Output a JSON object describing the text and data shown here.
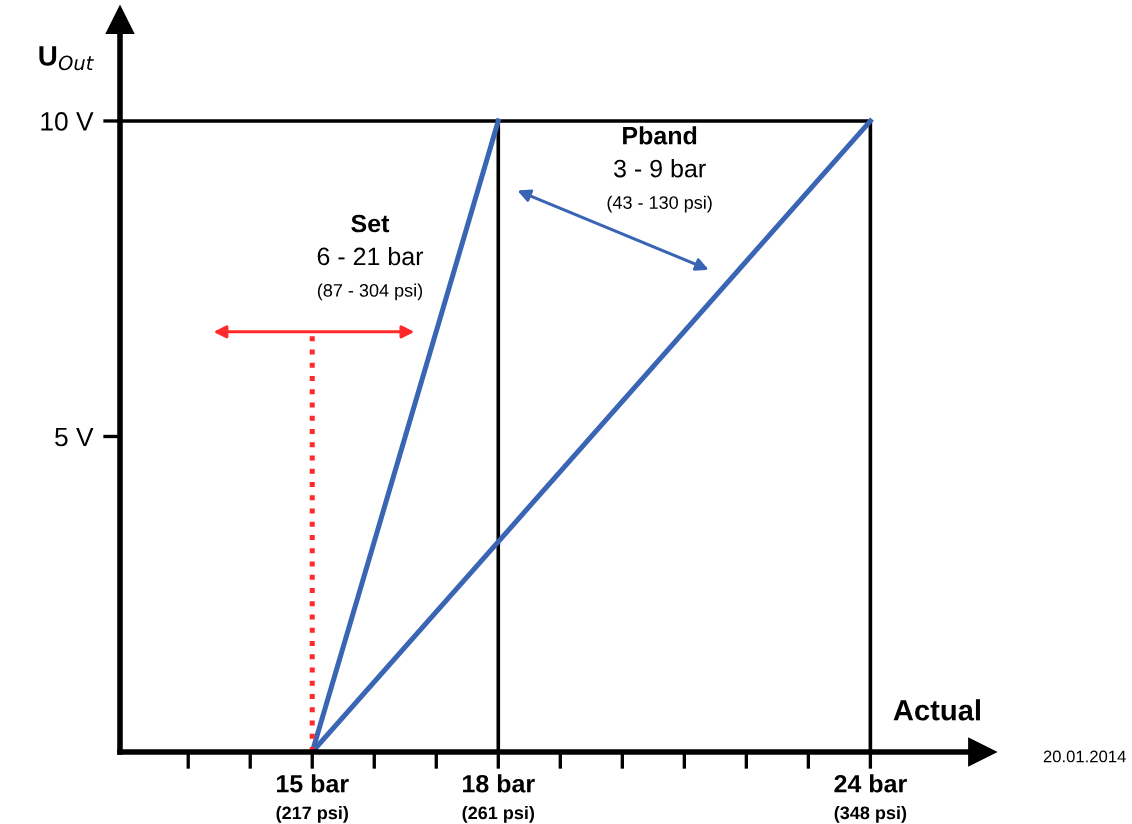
{
  "chart_data": {
    "type": "line",
    "xlabel": "Actual",
    "ylabel": "U$_{Out}$",
    "xlim": [
      11.9,
      25.8
    ],
    "ylim": [
      0,
      11.6
    ],
    "xticks": [
      {
        "value": 13,
        "label": null
      },
      {
        "value": 14,
        "label": null
      },
      {
        "value": 15,
        "label": "15 bar"
      },
      {
        "value": 16,
        "label": null
      },
      {
        "value": 17,
        "label": null
      },
      {
        "value": 18,
        "label": "18 bar"
      },
      {
        "value": 19,
        "label": null
      },
      {
        "value": 20,
        "label": null
      },
      {
        "value": 21,
        "label": null
      },
      {
        "value": 22,
        "label": null
      },
      {
        "value": 23,
        "label": null
      },
      {
        "value": 24,
        "label": "24 bar"
      }
    ],
    "yticks": [
      {
        "value": 5,
        "label": "5 V"
      },
      {
        "value": 10,
        "label": "10 V"
      }
    ],
    "series": [
      {
        "color": "#000000",
        "x": [
          11.9,
          18,
          18,
          18,
          24,
          24
        ],
        "values": [
          10,
          10,
          0,
          10,
          10,
          0
        ]
      },
      {
        "color": "#3a64b4",
        "x": [
          15,
          18
        ],
        "values": [
          0,
          10
        ]
      },
      {
        "color": "#3a64b4",
        "x": [
          15,
          24
        ],
        "values": [
          0,
          10
        ]
      },
      {
        "color": "#ff2a2a",
        "line_style": "dotted",
        "x": [
          15,
          15
        ],
        "values": [
          0,
          6.6
        ]
      }
    ],
    "annotations": [
      "Set\n6 - 21 bar\n(87 - 304 psi)",
      "Pband\n3 - 9 bar\n(43 - 130 psi)",
      {
        "text": "(217 psi)",
        "x": 15,
        "y": 0
      },
      {
        "text": "(261 psi)",
        "x": 18,
        "y": 0
      },
      {
        "text": "(348 psi)",
        "x": 24,
        "y": 0
      },
      "20.01.2014"
    ],
    "grid": false,
    "legend": false
  }
}
